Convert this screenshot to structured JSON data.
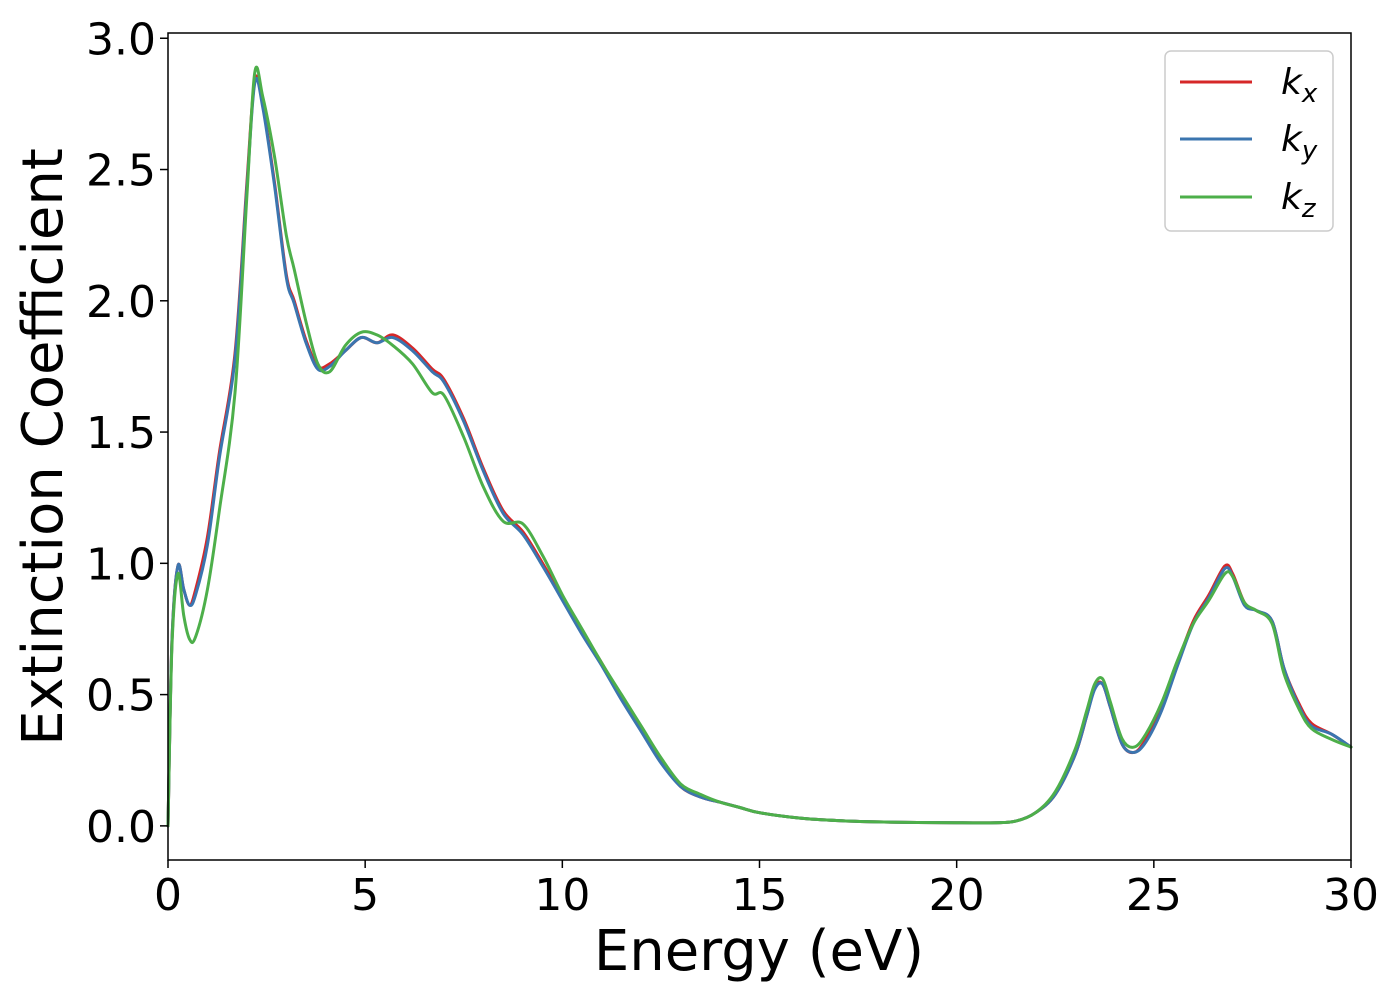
{
  "chart_data": {
    "type": "line",
    "title": "",
    "xlabel": "Energy (eV)",
    "ylabel": "Extinction Coefficient",
    "xlim": [
      0,
      30
    ],
    "ylim": [
      -0.13,
      3.02
    ],
    "xticks": [
      0,
      5,
      10,
      15,
      20,
      25,
      30
    ],
    "yticks": [
      0.0,
      0.5,
      1.0,
      1.5,
      2.0,
      2.5,
      3.0
    ],
    "xtick_labels": [
      "0",
      "5",
      "10",
      "15",
      "20",
      "25",
      "30"
    ],
    "ytick_labels": [
      "0.0",
      "0.5",
      "1.0",
      "1.5",
      "2.0",
      "2.5",
      "3.0"
    ],
    "grid": false,
    "legend_position": "top-right",
    "series": [
      {
        "name_base": "k",
        "name_sub": "x",
        "color": "#d62728",
        "x": [
          0,
          0.1,
          0.25,
          0.4,
          0.55,
          0.7,
          1.0,
          1.3,
          1.7,
          2.0,
          2.2,
          2.4,
          2.7,
          3.0,
          3.2,
          3.5,
          3.8,
          4.1,
          4.5,
          4.9,
          5.3,
          5.7,
          6.2,
          6.7,
          7.0,
          7.5,
          8.0,
          8.5,
          9.0,
          9.5,
          10.0,
          10.5,
          11.0,
          11.5,
          12.0,
          12.5,
          13.0,
          13.5,
          14.0,
          14.5,
          15.0,
          16,
          17,
          18,
          19,
          20,
          21,
          21.5,
          22,
          22.5,
          23,
          23.3,
          23.5,
          23.7,
          23.9,
          24.2,
          24.5,
          24.8,
          25.2,
          25.6,
          26.0,
          26.4,
          26.8,
          27.0,
          27.3,
          27.6,
          28.0,
          28.3,
          28.7,
          29.0,
          29.5,
          30
        ],
        "y": [
          0.0,
          0.7,
          0.99,
          0.9,
          0.84,
          0.9,
          1.1,
          1.42,
          1.8,
          2.45,
          2.84,
          2.75,
          2.45,
          2.1,
          2.0,
          1.85,
          1.75,
          1.76,
          1.81,
          1.86,
          1.84,
          1.87,
          1.82,
          1.74,
          1.7,
          1.55,
          1.36,
          1.2,
          1.12,
          1.0,
          0.87,
          0.74,
          0.62,
          0.49,
          0.37,
          0.25,
          0.15,
          0.11,
          0.09,
          0.07,
          0.05,
          0.03,
          0.02,
          0.015,
          0.013,
          0.012,
          0.012,
          0.018,
          0.05,
          0.12,
          0.27,
          0.42,
          0.53,
          0.54,
          0.45,
          0.31,
          0.28,
          0.33,
          0.45,
          0.62,
          0.78,
          0.88,
          0.99,
          0.96,
          0.85,
          0.82,
          0.78,
          0.6,
          0.46,
          0.39,
          0.35,
          0.3
        ]
      },
      {
        "name_base": "k",
        "name_sub": "y",
        "color": "#3b75af",
        "x": [
          0,
          0.1,
          0.25,
          0.4,
          0.55,
          0.7,
          1.0,
          1.3,
          1.7,
          2.0,
          2.2,
          2.4,
          2.7,
          3.0,
          3.2,
          3.5,
          3.8,
          4.1,
          4.5,
          4.9,
          5.3,
          5.7,
          6.2,
          6.7,
          7.0,
          7.5,
          8.0,
          8.5,
          9.0,
          9.5,
          10.0,
          10.5,
          11.0,
          11.5,
          12.0,
          12.5,
          13.0,
          13.5,
          14.0,
          14.5,
          15.0,
          16,
          17,
          18,
          19,
          20,
          21,
          21.5,
          22,
          22.5,
          23,
          23.3,
          23.5,
          23.7,
          23.9,
          24.2,
          24.5,
          24.8,
          25.2,
          25.6,
          26.0,
          26.4,
          26.8,
          27.0,
          27.3,
          27.6,
          28.0,
          28.3,
          28.7,
          29.0,
          29.5,
          30
        ],
        "y": [
          0.0,
          0.7,
          0.99,
          0.9,
          0.84,
          0.88,
          1.07,
          1.4,
          1.78,
          2.43,
          2.83,
          2.74,
          2.44,
          2.09,
          1.99,
          1.84,
          1.74,
          1.75,
          1.81,
          1.86,
          1.84,
          1.86,
          1.81,
          1.73,
          1.69,
          1.54,
          1.35,
          1.19,
          1.11,
          0.99,
          0.86,
          0.73,
          0.61,
          0.48,
          0.36,
          0.24,
          0.15,
          0.11,
          0.09,
          0.07,
          0.05,
          0.03,
          0.02,
          0.015,
          0.013,
          0.012,
          0.012,
          0.018,
          0.05,
          0.12,
          0.27,
          0.42,
          0.52,
          0.54,
          0.45,
          0.31,
          0.28,
          0.32,
          0.44,
          0.61,
          0.77,
          0.87,
          0.98,
          0.95,
          0.84,
          0.82,
          0.78,
          0.6,
          0.45,
          0.38,
          0.35,
          0.3
        ]
      },
      {
        "name_base": "k",
        "name_sub": "z",
        "color": "#4daf4a",
        "x": [
          0,
          0.1,
          0.25,
          0.4,
          0.55,
          0.7,
          1.0,
          1.3,
          1.7,
          2.0,
          2.2,
          2.4,
          2.7,
          3.0,
          3.2,
          3.5,
          3.8,
          4.1,
          4.5,
          4.9,
          5.3,
          5.7,
          6.2,
          6.7,
          7.0,
          7.5,
          8.0,
          8.5,
          9.0,
          9.5,
          10.0,
          10.5,
          11.0,
          11.5,
          12.0,
          12.5,
          13.0,
          13.5,
          14.0,
          14.5,
          15.0,
          16,
          17,
          18,
          19,
          20,
          21,
          21.5,
          22,
          22.5,
          23,
          23.3,
          23.5,
          23.7,
          23.9,
          24.2,
          24.5,
          24.8,
          25.2,
          25.6,
          26.0,
          26.4,
          26.8,
          27.0,
          27.3,
          27.6,
          28.0,
          28.3,
          28.7,
          29.0,
          29.5,
          30
        ],
        "y": [
          0.0,
          0.68,
          0.96,
          0.8,
          0.71,
          0.72,
          0.9,
          1.2,
          1.65,
          2.4,
          2.87,
          2.78,
          2.55,
          2.25,
          2.12,
          1.92,
          1.76,
          1.73,
          1.83,
          1.88,
          1.87,
          1.83,
          1.76,
          1.65,
          1.64,
          1.48,
          1.29,
          1.16,
          1.15,
          1.03,
          0.88,
          0.75,
          0.62,
          0.5,
          0.38,
          0.26,
          0.16,
          0.12,
          0.09,
          0.07,
          0.05,
          0.03,
          0.02,
          0.015,
          0.013,
          0.012,
          0.012,
          0.018,
          0.05,
          0.13,
          0.29,
          0.44,
          0.54,
          0.56,
          0.47,
          0.33,
          0.3,
          0.35,
          0.47,
          0.63,
          0.77,
          0.86,
          0.96,
          0.95,
          0.85,
          0.82,
          0.77,
          0.58,
          0.44,
          0.37,
          0.33,
          0.3
        ]
      }
    ]
  }
}
